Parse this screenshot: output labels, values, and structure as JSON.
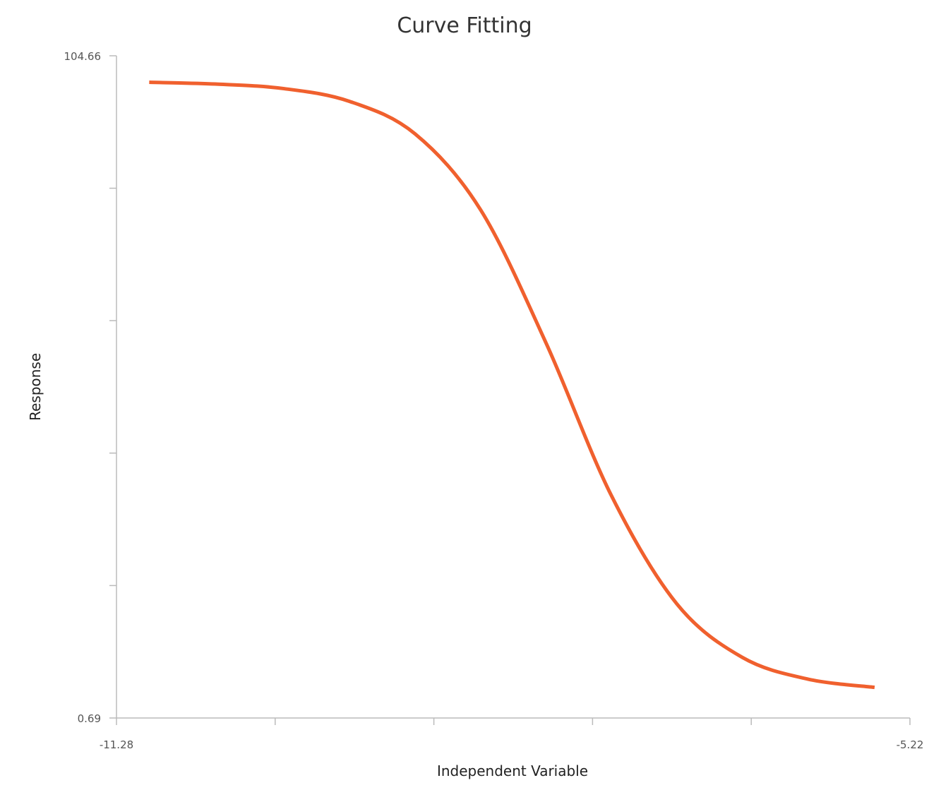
{
  "chart_data": {
    "type": "line",
    "title": "Curve Fitting",
    "xlabel": "Independent Variable",
    "ylabel": "Response",
    "xlim": [
      -11.28,
      -5.22
    ],
    "ylim": [
      0.69,
      104.66
    ],
    "x_tick_labels": [
      "-11.28",
      "-5.22"
    ],
    "y_tick_labels": [
      "0.69",
      "104.66"
    ],
    "x_tick_count": 6,
    "y_tick_count": 6,
    "grid": false,
    "series": [
      {
        "color": "#f0602e",
        "x": [
          -11.03,
          -10.5,
          -10.0,
          -9.5,
          -9.0,
          -8.5,
          -8.0,
          -7.5,
          -7.0,
          -6.5,
          -6.0,
          -5.49
        ],
        "y": [
          100.5,
          100.2,
          99.5,
          97.5,
          92.4,
          80.5,
          59.6,
          35.6,
          18.6,
          10.2,
          6.8,
          5.5
        ]
      }
    ]
  }
}
